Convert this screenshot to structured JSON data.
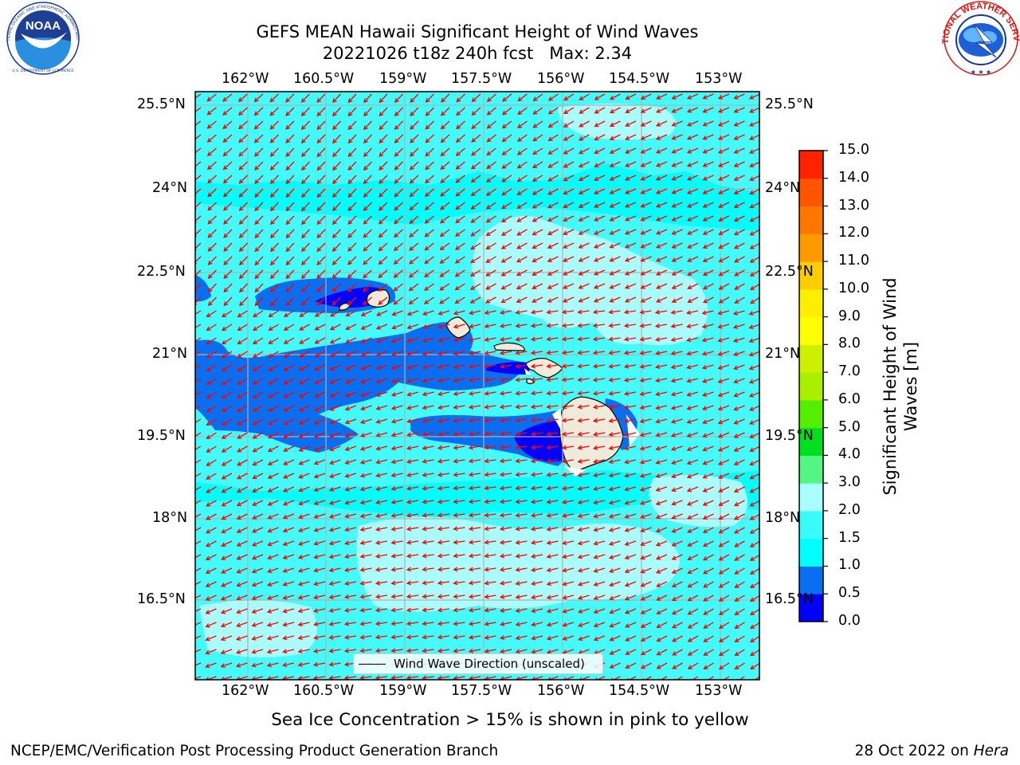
{
  "title": {
    "line1": "GEFS MEAN Hawaii Significant Height of Wind Waves",
    "line2": "20221026 t18z 240h fcst   Max: 2.34"
  },
  "map": {
    "lon_ticks": [
      "162°W",
      "160.5°W",
      "159°W",
      "157.5°W",
      "156°W",
      "154.5°W",
      "153°W"
    ],
    "lat_ticks": [
      "25.5°N",
      "24°N",
      "22.5°N",
      "21°N",
      "19.5°N",
      "18°N",
      "16.5°N"
    ],
    "legend_label": "Wind Wave Direction (unscaled)",
    "arrow_color": "#ff0000",
    "land_color": "#efebda",
    "ocean_base_color": "#00ffff"
  },
  "colorbar": {
    "label_line1": "Significant Height of Wind",
    "label_line2": "Waves [m]",
    "levels": [
      "0.0",
      "0.5",
      "1.0",
      "1.5",
      "2.0",
      "3.0",
      "4.0",
      "5.0",
      "6.0",
      "7.0",
      "8.0",
      "9.0",
      "10.0",
      "11.0",
      "12.0",
      "13.0",
      "14.0",
      "15.0"
    ],
    "colors": [
      "#0000ff",
      "#0a6ef0",
      "#00ffff",
      "#3afafa",
      "#aafdfd",
      "#55f585",
      "#00e020",
      "#55ee00",
      "#aaee00",
      "#ccf000",
      "#ffff00",
      "#ffee00",
      "#ffcc00",
      "#ff9900",
      "#ff7700",
      "#ff5500",
      "#ff2200"
    ]
  },
  "note": "Sea Ice Concentration > 15% is shown in pink to yellow",
  "footer": {
    "left": "NCEP/EMC/Verification Post Processing Product Generation Branch",
    "right_date": "28 Oct 2022 on ",
    "right_machine": "Hera"
  },
  "logos": {
    "noaa_text": "NOAA",
    "noaa_ring_top": "NATIONAL OCEANIC AND ATMOSPHERIC ADMINISTRATION",
    "noaa_ring_bottom": "U.S. DEPARTMENT OF COMMERCE",
    "nws_ring": "NATIONAL WEATHER SERVICE"
  }
}
